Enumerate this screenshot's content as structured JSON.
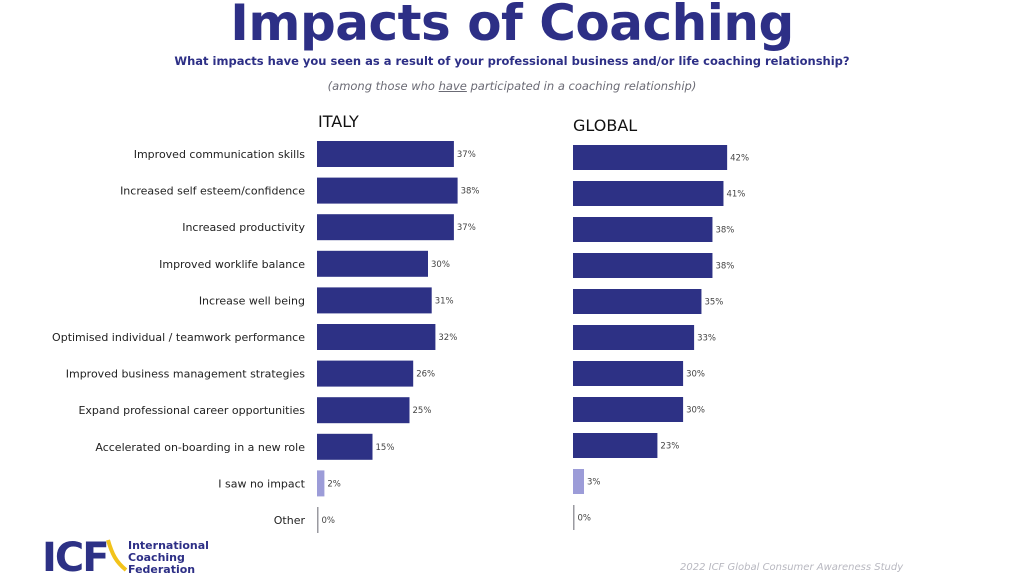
{
  "page": {
    "title": "Impacts of Coaching",
    "subtitle": "What impacts have you seen as a result of your professional business and/or life coaching relationship?",
    "note_before": "(among those who ",
    "note_emph": "have",
    "note_after": "  participated in a coaching relationship)",
    "footer": "2022 ICF Global Consumer Awareness Study",
    "logo": {
      "mark": "ICF",
      "line1": "International",
      "line2": "Coaching",
      "line3": "Federation"
    }
  },
  "colors": {
    "bar": "#2d3185",
    "bar_light": "#9c9cd8",
    "bar_gray": "#9a9aa0",
    "title": "#2d2f86",
    "logo_yellow": "#f2c31b"
  },
  "chart_data": [
    {
      "type": "bar",
      "orientation": "horizontal",
      "title": "ITALY",
      "unit": "%",
      "xlim": [
        0,
        42
      ],
      "categories": [
        "Improved  communication  skills",
        "Increased self esteem/confidence",
        "Increased productivity",
        "Improved  worklife balance",
        "Increase well being",
        "Optimised individual / teamwork performance",
        "Improved business management strategies",
        "Expand professional career opportunities",
        "Accelerated on-boarding in a new role",
        "I saw no impact",
        "Other"
      ],
      "values": [
        37,
        38,
        37,
        30,
        31,
        32,
        26,
        25,
        15,
        2,
        0
      ],
      "labels": [
        "37%",
        "38%",
        "37%",
        "30%",
        "31%",
        "32%",
        "26%",
        "25%",
        "15%",
        "2%",
        "0%"
      ]
    },
    {
      "type": "bar",
      "orientation": "horizontal",
      "title": "GLOBAL",
      "unit": "%",
      "xlim": [
        0,
        42
      ],
      "categories": [
        "Improved  communication  skills",
        "Increased self esteem/confidence",
        "Increased productivity",
        "Improved  worklife balance",
        "Increase well being",
        "Optimised individual / teamwork performance",
        "Improved business management strategies",
        "Expand professional career opportunities",
        "Accelerated on-boarding in a new role",
        "I saw no impact",
        "Other"
      ],
      "values": [
        42,
        41,
        38,
        38,
        35,
        33,
        30,
        30,
        23,
        3,
        0
      ],
      "labels": [
        "42%",
        "41%",
        "38%",
        "38%",
        "35%",
        "33%",
        "30%",
        "30%",
        "23%",
        "3%",
        "0%"
      ]
    }
  ]
}
